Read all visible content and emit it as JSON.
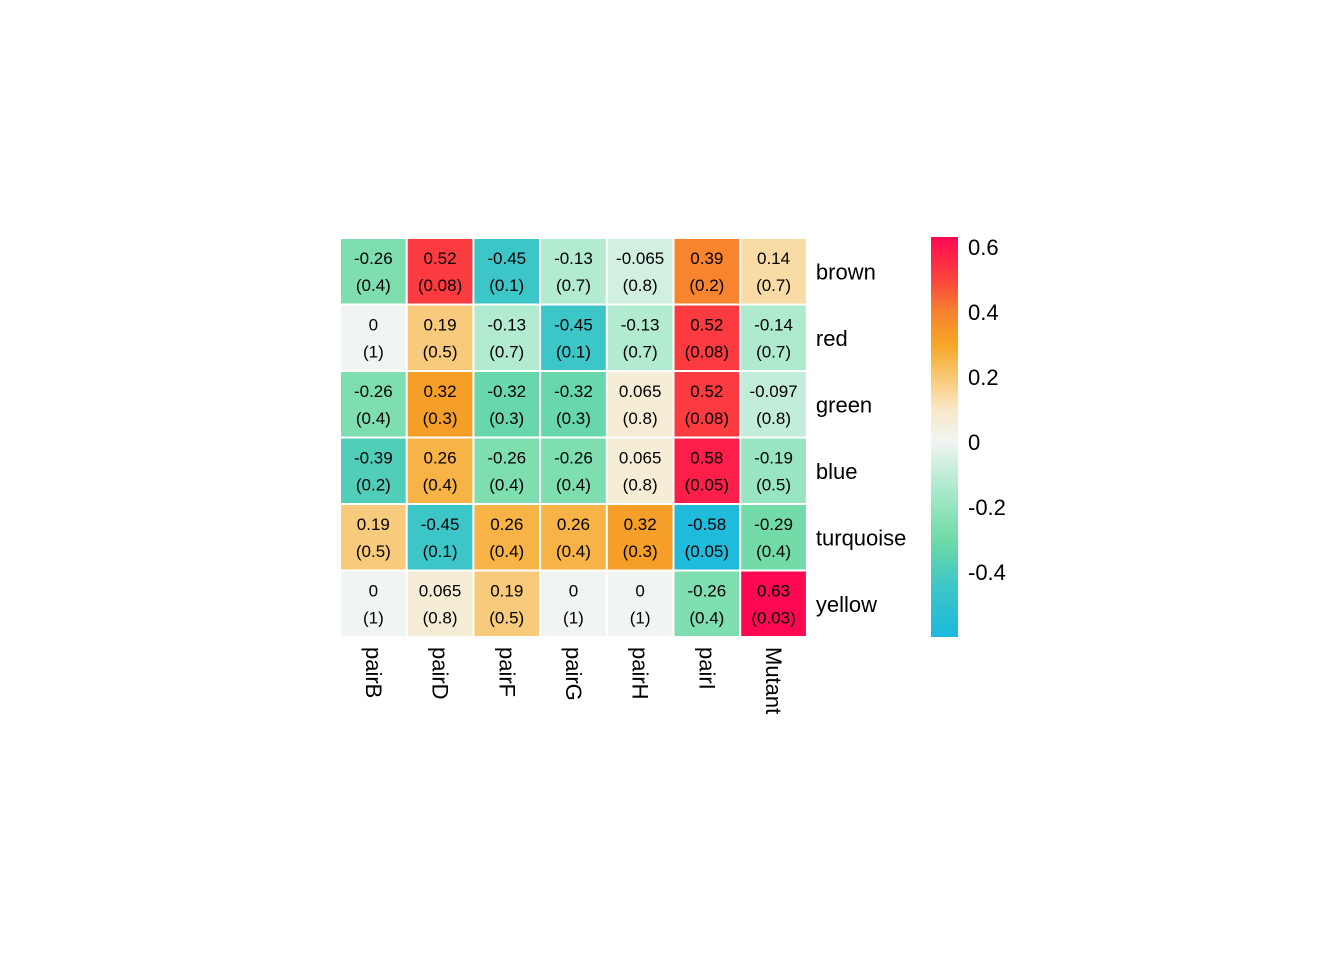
{
  "chart_data": {
    "type": "heatmap",
    "rows": [
      "brown",
      "red",
      "green",
      "blue",
      "turquoise",
      "yellow"
    ],
    "columns": [
      "pairB",
      "pairD",
      "pairF",
      "pairG",
      "pairH",
      "pairI",
      "Mutant"
    ],
    "values": [
      [
        -0.26,
        0.52,
        -0.45,
        -0.13,
        -0.065,
        0.39,
        0.14
      ],
      [
        0,
        0.19,
        -0.13,
        -0.45,
        -0.13,
        0.52,
        -0.14
      ],
      [
        -0.26,
        0.32,
        -0.32,
        -0.32,
        0.065,
        0.52,
        -0.097
      ],
      [
        -0.39,
        0.26,
        -0.26,
        -0.26,
        0.065,
        0.58,
        -0.19
      ],
      [
        0.19,
        -0.45,
        0.26,
        0.26,
        0.32,
        -0.58,
        -0.29
      ],
      [
        0,
        0.065,
        0.19,
        0,
        0,
        -0.26,
        0.63
      ]
    ],
    "value_labels": [
      [
        "-0.26",
        "0.52",
        "-0.45",
        "-0.13",
        "-0.065",
        "0.39",
        "0.14"
      ],
      [
        "0",
        "0.19",
        "-0.13",
        "-0.45",
        "-0.13",
        "0.52",
        "-0.14"
      ],
      [
        "-0.26",
        "0.32",
        "-0.32",
        "-0.32",
        "0.065",
        "0.52",
        "-0.097"
      ],
      [
        "-0.39",
        "0.26",
        "-0.26",
        "-0.26",
        "0.065",
        "0.58",
        "-0.19"
      ],
      [
        "0.19",
        "-0.45",
        "0.26",
        "0.26",
        "0.32",
        "-0.58",
        "-0.29"
      ],
      [
        "0",
        "0.065",
        "0.19",
        "0",
        "0",
        "-0.26",
        "0.63"
      ]
    ],
    "pvalue_labels": [
      [
        "(0.4)",
        "(0.08)",
        "(0.1)",
        "(0.7)",
        "(0.8)",
        "(0.2)",
        "(0.7)"
      ],
      [
        "(1)",
        "(0.5)",
        "(0.7)",
        "(0.1)",
        "(0.7)",
        "(0.08)",
        "(0.7)"
      ],
      [
        "(0.4)",
        "(0.3)",
        "(0.3)",
        "(0.3)",
        "(0.8)",
        "(0.08)",
        "(0.8)"
      ],
      [
        "(0.2)",
        "(0.4)",
        "(0.4)",
        "(0.4)",
        "(0.8)",
        "(0.05)",
        "(0.5)"
      ],
      [
        "(0.5)",
        "(0.1)",
        "(0.4)",
        "(0.4)",
        "(0.3)",
        "(0.05)",
        "(0.4)"
      ],
      [
        "(1)",
        "(0.8)",
        "(0.5)",
        "(1)",
        "(1)",
        "(0.4)",
        "(0.03)"
      ]
    ],
    "color_range": [
      -0.6,
      0.63
    ],
    "colorscale": [
      [
        -0.6,
        "#1CB9DE"
      ],
      [
        -0.45,
        "#3CC6C8"
      ],
      [
        -0.3,
        "#6FDAA6"
      ],
      [
        -0.15,
        "#A9E9CB"
      ],
      [
        0,
        "#F1F5F2"
      ],
      [
        0.1,
        "#F9E8C8"
      ],
      [
        0.2,
        "#F8C774"
      ],
      [
        0.3,
        "#F6A626"
      ],
      [
        0.4,
        "#F8812E"
      ],
      [
        0.5,
        "#FA443D"
      ],
      [
        0.63,
        "#FF0852"
      ]
    ],
    "legend": {
      "ticks": [
        0.6,
        0.4,
        0.2,
        0,
        -0.2,
        -0.4
      ],
      "tick_labels": [
        "0.6",
        "0.4",
        "0.2",
        "0",
        "-0.2",
        "-0.4"
      ]
    },
    "grid": false
  }
}
